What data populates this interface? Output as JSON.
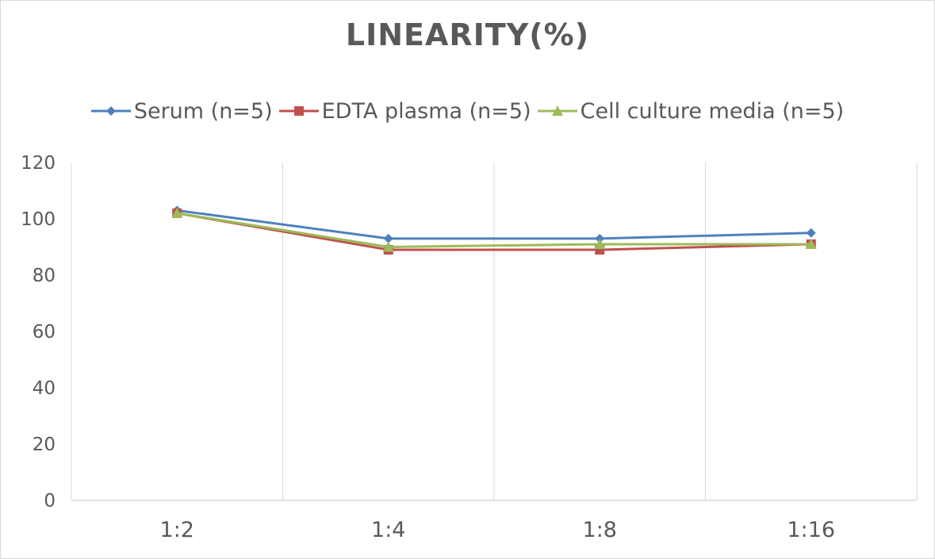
{
  "chart_data": {
    "type": "line",
    "title": "LINEARITY(%)",
    "xlabel": "",
    "ylabel": "",
    "categories": [
      "1:2",
      "1:4",
      "1:8",
      "1:16"
    ],
    "ylim": [
      0,
      120
    ],
    "yticks": [
      0,
      20,
      40,
      60,
      80,
      100,
      120
    ],
    "grid": "vertical",
    "legend_position": "top",
    "series": [
      {
        "name": "Serum (n=5)",
        "values": [
          103,
          93,
          93,
          95
        ],
        "color": "#4f81bd",
        "marker": "diamond"
      },
      {
        "name": "EDTA plasma (n=5)",
        "values": [
          102,
          89,
          89,
          91
        ],
        "color": "#c0504d",
        "marker": "square"
      },
      {
        "name": "Cell culture media (n=5)",
        "values": [
          102,
          90,
          91,
          91
        ],
        "color": "#9bbb59",
        "marker": "triangle"
      }
    ]
  }
}
